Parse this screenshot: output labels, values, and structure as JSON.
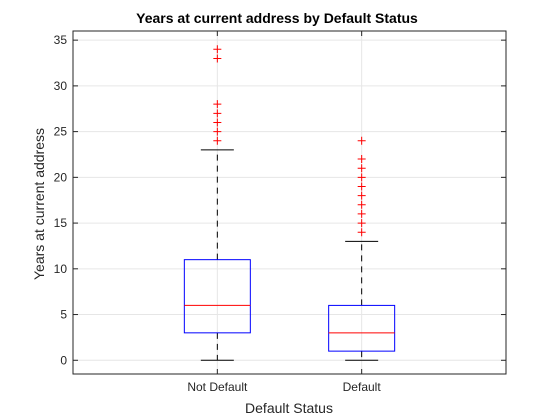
{
  "chart_data": {
    "type": "box",
    "title": "Years at current address by Default Status",
    "xlabel": "Default Status",
    "ylabel": "Years at current address",
    "categories": [
      "Not Default",
      "Default"
    ],
    "ylim": [
      -1.5,
      36
    ],
    "yticks": [
      0,
      5,
      10,
      15,
      20,
      25,
      30,
      35
    ],
    "grid": true,
    "boxes": [
      {
        "category": "Not Default",
        "whisker_low": 0,
        "q1": 3,
        "median": 6,
        "q3": 11,
        "whisker_high": 23,
        "outliers": [
          24,
          25,
          26,
          27,
          28,
          33,
          34
        ]
      },
      {
        "category": "Default",
        "whisker_low": 0,
        "q1": 1,
        "median": 3,
        "q3": 6,
        "whisker_high": 13,
        "outliers": [
          14,
          15,
          16,
          17,
          18,
          19,
          20,
          21,
          22,
          24
        ]
      }
    ],
    "colors": {
      "box": "#0000ff",
      "median": "#ff0000",
      "whisker": "#000000",
      "outlier": "#ff0000",
      "grid": "#e6e6e6",
      "axis": "#262626"
    }
  }
}
